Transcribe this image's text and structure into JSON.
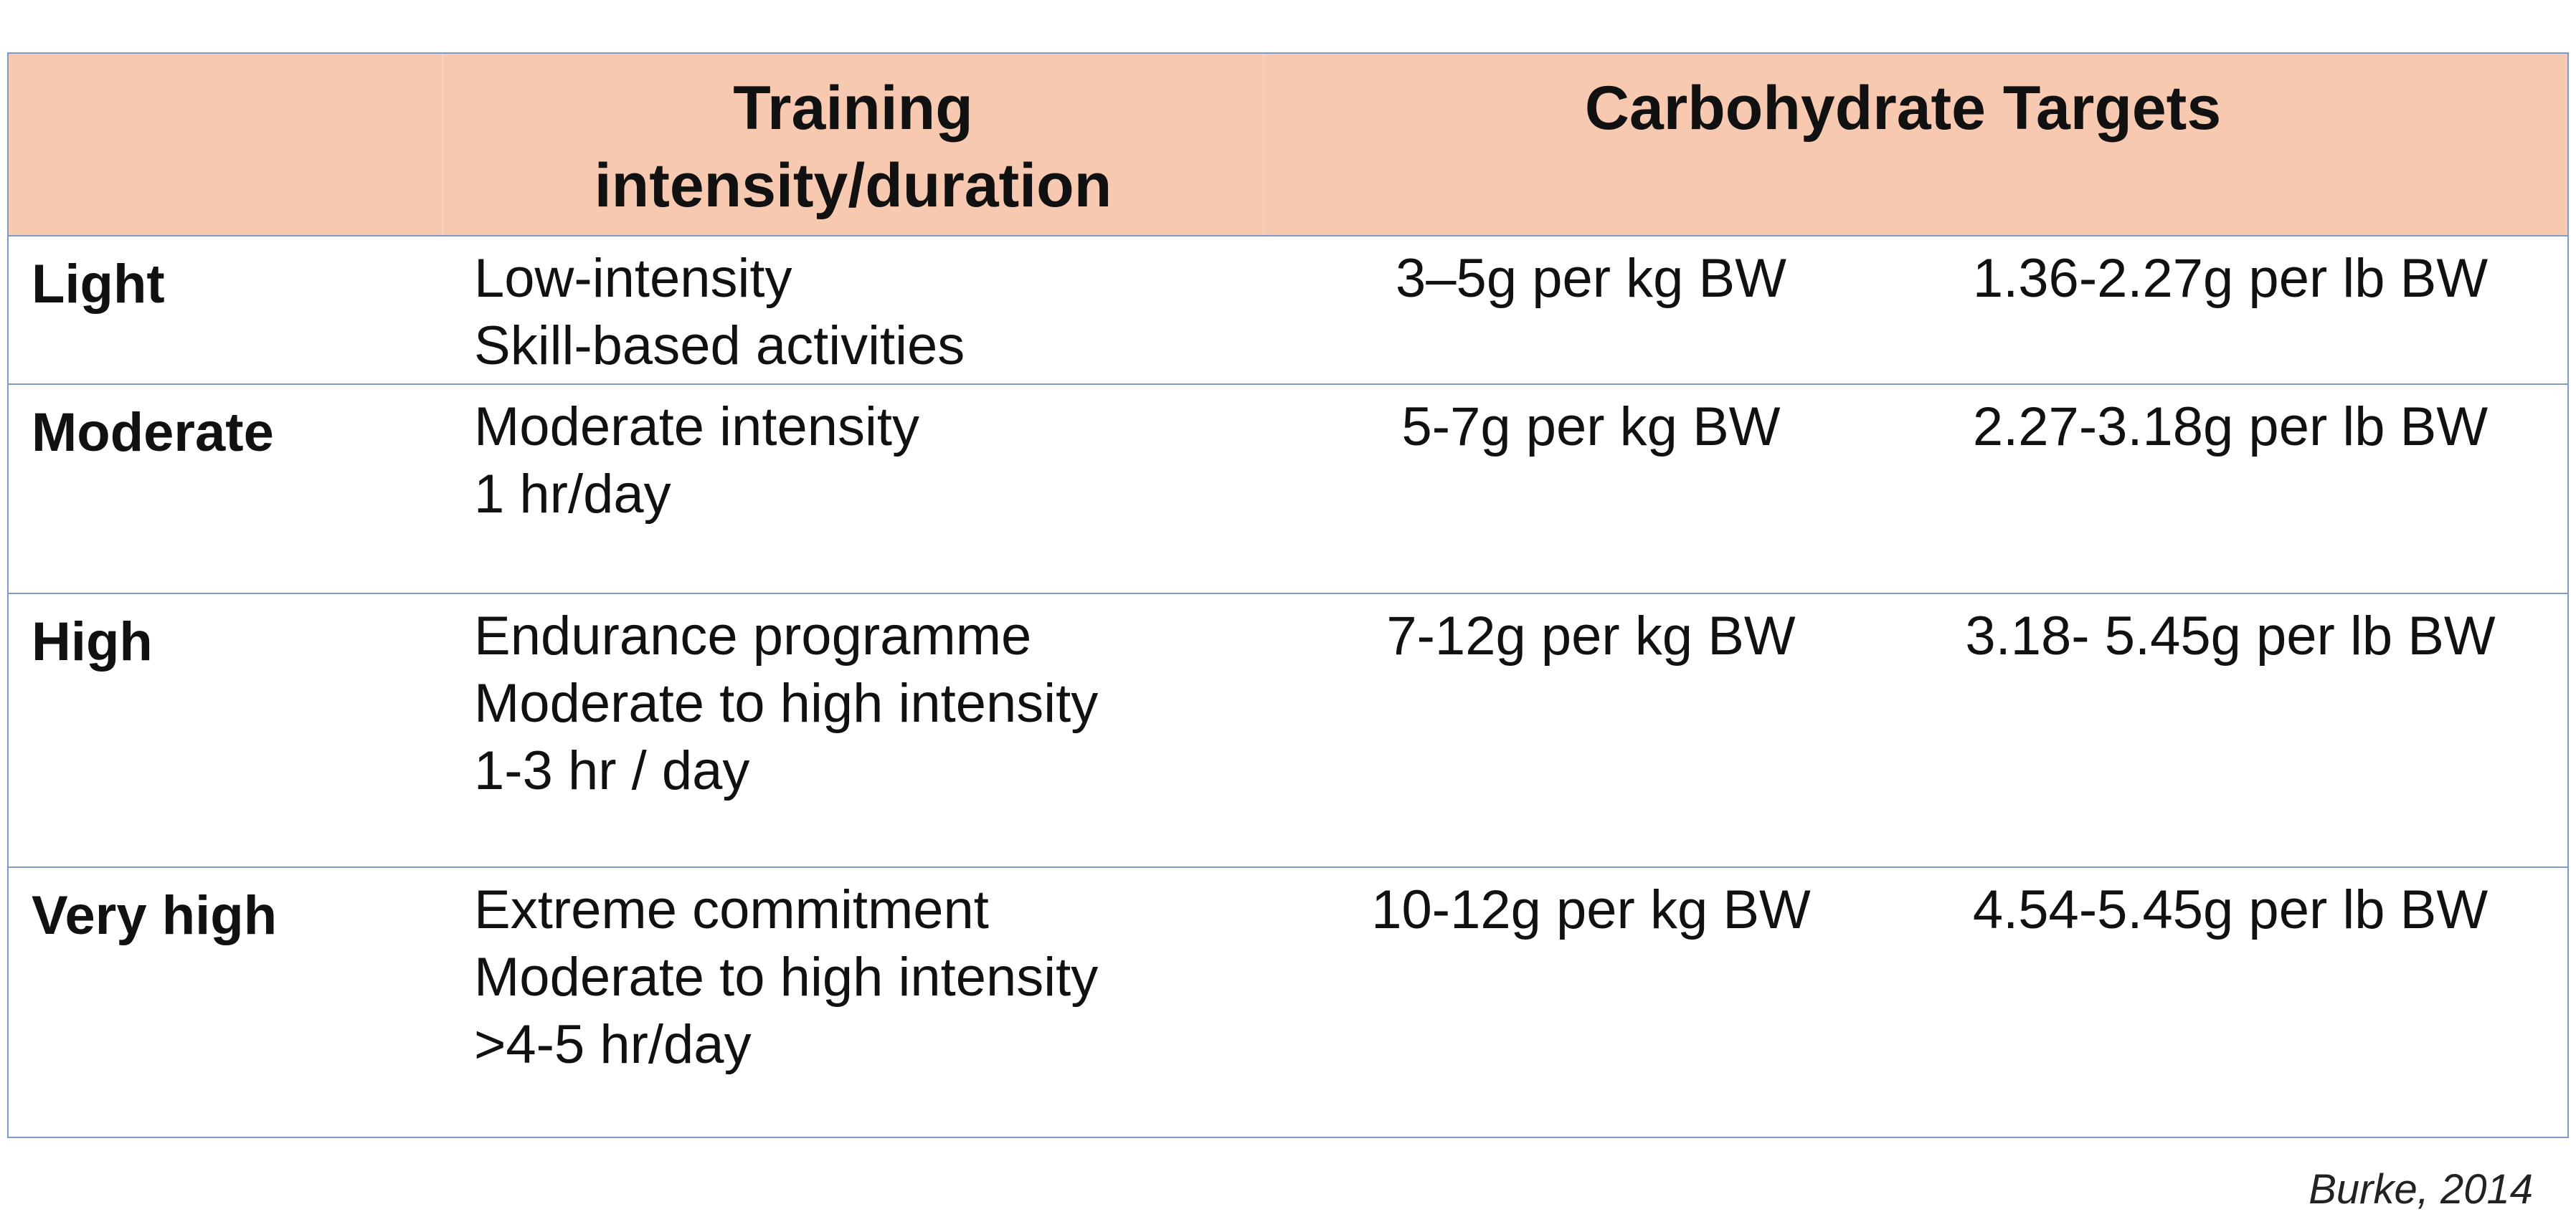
{
  "table": {
    "headers": {
      "level": "",
      "training_line1": "Training",
      "training_line2": "intensity/duration",
      "carbohydrate": "Carbohydrate Targets"
    },
    "rows": [
      {
        "level": "Light",
        "description": [
          "Low-intensity",
          "Skill-based activities",
          ""
        ],
        "per_kg": "3–5g per kg BW",
        "per_lb": "1.36-2.27g per lb BW"
      },
      {
        "level": "Moderate",
        "description": [
          "Moderate intensity",
          "1 hr/day",
          ""
        ],
        "per_kg": "5-7g per kg BW",
        "per_lb": "2.27-3.18g per lb BW"
      },
      {
        "level": "High",
        "description": [
          "Endurance programme",
          "Moderate to high intensity",
          "1-3 hr / day"
        ],
        "per_kg": "7-12g per kg BW",
        "per_lb": "3.18- 5.45g per lb BW"
      },
      {
        "level": "Very high",
        "description": [
          "Extreme commitment",
          "Moderate to high intensity",
          ">4-5 hr/day"
        ],
        "per_kg": "10-12g per kg BW",
        "per_lb": "4.54-5.45g per lb BW"
      }
    ]
  },
  "citation": "Burke, 2014",
  "colors": {
    "header_background": "#f7c9b0",
    "border": "#7f9cc8"
  }
}
